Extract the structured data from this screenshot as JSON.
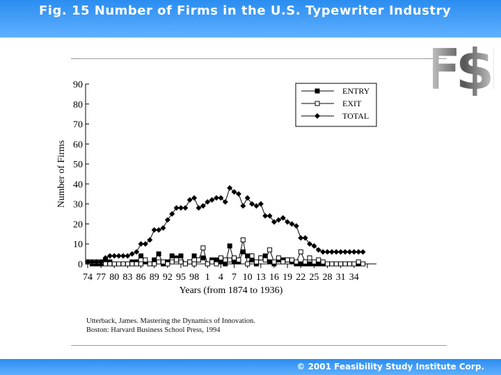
{
  "header": {
    "title": "Fig. 15   Number of Firms in the U.S. Typewriter Industry"
  },
  "logo": {
    "text": "F$I"
  },
  "citation": {
    "line1": "Utterback, James.  Mastering the Dynamics of Innovation.",
    "line2": "Boston: Harvard Business School Press, 1994"
  },
  "footer": {
    "copyright": "© 2001 Feasibility Study Institute Corp."
  },
  "colors": {
    "header": "#3d9cf8",
    "series": "#000000"
  },
  "chart_data": {
    "type": "line",
    "title": "",
    "xlabel": "Years (from 1874 to 1936)",
    "ylabel": "Number of Firms",
    "ylim": [
      0,
      90
    ],
    "yticks": [
      0,
      10,
      20,
      30,
      40,
      50,
      60,
      70,
      80,
      90
    ],
    "xrange": [
      1874,
      1936
    ],
    "xtick_labels": [
      "74",
      "77",
      "80",
      "83",
      "86",
      "89",
      "92",
      "95",
      "98",
      "1",
      "4",
      "7",
      "10",
      "13",
      "16",
      "19",
      "22",
      "25",
      "28",
      "31",
      "34"
    ],
    "xtick_years": [
      1874,
      1877,
      1880,
      1883,
      1886,
      1889,
      1892,
      1895,
      1898,
      1901,
      1904,
      1907,
      1910,
      1913,
      1916,
      1919,
      1922,
      1925,
      1928,
      1931,
      1934
    ],
    "legend_position": "top-right",
    "grid": false,
    "x": [
      1874,
      1875,
      1876,
      1877,
      1878,
      1879,
      1880,
      1881,
      1882,
      1883,
      1884,
      1885,
      1886,
      1887,
      1888,
      1889,
      1890,
      1891,
      1892,
      1893,
      1894,
      1895,
      1896,
      1897,
      1898,
      1899,
      1900,
      1901,
      1902,
      1903,
      1904,
      1905,
      1906,
      1907,
      1908,
      1909,
      1910,
      1911,
      1912,
      1913,
      1914,
      1915,
      1916,
      1917,
      1918,
      1919,
      1920,
      1921,
      1922,
      1923,
      1924,
      1925,
      1926,
      1927,
      1928,
      1929,
      1930,
      1931,
      1932,
      1933,
      1934,
      1935,
      1936
    ],
    "series": [
      {
        "name": "ENTRY",
        "marker": "filled-square",
        "values": [
          1,
          0,
          0,
          0,
          2,
          1,
          0,
          0,
          0,
          0,
          1,
          1,
          4,
          1,
          0,
          2,
          5,
          0,
          1,
          4,
          3,
          4,
          0,
          1,
          4,
          2,
          3,
          0,
          2,
          2,
          1,
          0,
          9,
          1,
          1,
          6,
          4,
          2,
          0,
          3,
          4,
          1,
          0,
          2,
          2,
          2,
          1,
          0,
          0,
          0,
          0,
          0,
          0,
          0,
          0,
          0,
          0,
          0,
          0,
          0,
          0,
          0,
          0
        ]
      },
      {
        "name": "EXIT",
        "marker": "open-square",
        "values": [
          1,
          1,
          1,
          1,
          0,
          0,
          0,
          0,
          0,
          0,
          0,
          0,
          0,
          2,
          0,
          0,
          1,
          1,
          0,
          1,
          2,
          1,
          0,
          1,
          0,
          2,
          8,
          0,
          1,
          0,
          3,
          2,
          2,
          3,
          2,
          12,
          0,
          4,
          1,
          3,
          2,
          7,
          1,
          3,
          1,
          2,
          2,
          1,
          6,
          1,
          3,
          1,
          2,
          1,
          0,
          0,
          0,
          0,
          0,
          0,
          0,
          1,
          0
        ]
      },
      {
        "name": "TOTAL",
        "marker": "diamond",
        "values": [
          1,
          1,
          1,
          1,
          3,
          4,
          4,
          4,
          4,
          4,
          5,
          6,
          10,
          10,
          12,
          17,
          17,
          18,
          22,
          25,
          28,
          28,
          28,
          32,
          33,
          28,
          29,
          31,
          32,
          33,
          33,
          31,
          38,
          36,
          35,
          29,
          33,
          30,
          29,
          30,
          24,
          24,
          21,
          22,
          23,
          21,
          20,
          19,
          13,
          13,
          10,
          9,
          7,
          6,
          6,
          6,
          6,
          6,
          6,
          6,
          6,
          6,
          6
        ]
      }
    ]
  }
}
